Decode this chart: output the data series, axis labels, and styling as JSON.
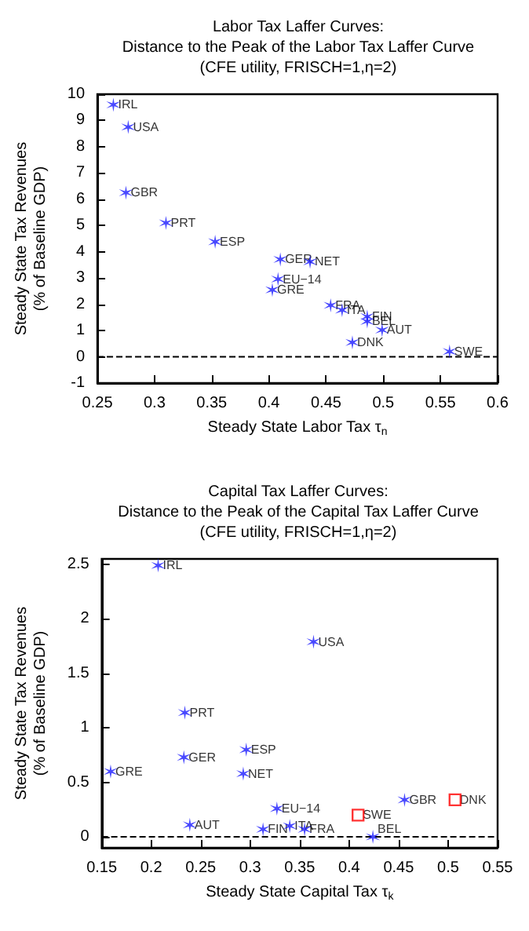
{
  "chart_data": [
    {
      "type": "scatter",
      "title": "Labor Tax Laffer Curves:\nDistance to the Peak of the Labor Tax Laffer Curve\n(CFE utility, FRISCH=1,η=2)",
      "xlabel": "Steady State Labor Tax τ$_{n}$",
      "ylabel": "Steady State Tax Revenues\n(% of Baseline GDP)",
      "xlim": [
        0.25,
        0.6
      ],
      "xticks": [
        0.25,
        0.3,
        0.35,
        0.4,
        0.45,
        0.5,
        0.55,
        0.6
      ],
      "ylim": [
        -1,
        10
      ],
      "yticks": [
        -1,
        0,
        1,
        2,
        3,
        4,
        5,
        6,
        7,
        8,
        9,
        10
      ],
      "grid": false,
      "series": [
        {
          "color": "#1a1aff",
          "marker": "cross",
          "x": [
            0.264,
            0.277,
            0.275,
            0.31,
            0.353,
            0.41,
            0.436,
            0.408,
            0.403,
            0.454,
            0.464,
            0.486,
            0.486,
            0.499,
            0.473,
            0.558
          ],
          "values": [
            9.6,
            8.75,
            6.25,
            5.1,
            4.38,
            3.71,
            3.62,
            2.96,
            2.55,
            1.96,
            1.78,
            1.53,
            1.35,
            1.02,
            0.55,
            0.2
          ]
        }
      ],
      "ref_lines": [
        {
          "axis": "y",
          "value": 0,
          "color": "#000000",
          "line_style": "dashed"
        }
      ],
      "annotations": [
        {
          "text": "IRL",
          "x": 0.264,
          "y": 9.6
        },
        {
          "text": "USA",
          "x": 0.277,
          "y": 8.75
        },
        {
          "text": "GBR",
          "x": 0.275,
          "y": 6.25
        },
        {
          "text": "PRT",
          "x": 0.31,
          "y": 5.1
        },
        {
          "text": "ESP",
          "x": 0.353,
          "y": 4.38
        },
        {
          "text": "GER",
          "x": 0.41,
          "y": 3.71
        },
        {
          "text": "NET",
          "x": 0.436,
          "y": 3.62
        },
        {
          "text": "EU−14",
          "x": 0.408,
          "y": 2.96
        },
        {
          "text": "GRE",
          "x": 0.403,
          "y": 2.55
        },
        {
          "text": "FRA",
          "x": 0.454,
          "y": 1.96
        },
        {
          "text": "ITA",
          "x": 0.464,
          "y": 1.78
        },
        {
          "text": "FIN",
          "x": 0.486,
          "y": 1.53
        },
        {
          "text": "BEL",
          "x": 0.486,
          "y": 1.35
        },
        {
          "text": "AUT",
          "x": 0.499,
          "y": 1.02
        },
        {
          "text": "DNK",
          "x": 0.473,
          "y": 0.55
        },
        {
          "text": "SWE",
          "x": 0.558,
          "y": 0.2
        }
      ]
    },
    {
      "type": "scatter",
      "title": "Capital Tax Laffer Curves:\nDistance to the Peak of the Capital Tax Laffer Curve\n(CFE utility, FRISCH=1,η=2)",
      "xlabel": "Steady State Capital Tax τ$_{k}$",
      "ylabel": "Steady State Tax Revenues\n(% of Baseline GDP)",
      "xlim": [
        0.15,
        0.55
      ],
      "xticks": [
        0.15,
        0.2,
        0.25,
        0.3,
        0.35,
        0.4,
        0.45,
        0.5,
        0.55
      ],
      "ylim": [
        -0.1,
        2.55
      ],
      "yticks": [
        0,
        0.5,
        1,
        1.5,
        2,
        2.5
      ],
      "grid": false,
      "series": [
        {
          "color": "#1a1aff",
          "marker": "cross",
          "x": [
            0.207,
            0.364,
            0.234,
            0.233,
            0.296,
            0.293,
            0.159,
            0.327,
            0.239,
            0.313,
            0.34,
            0.355,
            0.424,
            0.456
          ],
          "values": [
            2.49,
            1.79,
            1.14,
            0.73,
            0.8,
            0.58,
            0.6,
            0.26,
            0.11,
            0.07,
            0.1,
            0.07,
            0.0,
            0.34
          ]
        },
        {
          "color": "#ff0000",
          "marker": "square",
          "x": [
            0.409,
            0.507
          ],
          "values": [
            0.2,
            0.34
          ]
        }
      ],
      "ref_lines": [
        {
          "axis": "y",
          "value": 0,
          "color": "#000000",
          "line_style": "dashed"
        }
      ],
      "annotations": [
        {
          "text": "IRL",
          "x": 0.207,
          "y": 2.49
        },
        {
          "text": "USA",
          "x": 0.364,
          "y": 1.79
        },
        {
          "text": "PRT",
          "x": 0.234,
          "y": 1.14
        },
        {
          "text": "GER",
          "x": 0.233,
          "y": 0.73
        },
        {
          "text": "ESP",
          "x": 0.296,
          "y": 0.8
        },
        {
          "text": "NET",
          "x": 0.293,
          "y": 0.58
        },
        {
          "text": "GRE",
          "x": 0.159,
          "y": 0.6
        },
        {
          "text": "EU−14",
          "x": 0.327,
          "y": 0.26
        },
        {
          "text": "AUT",
          "x": 0.239,
          "y": 0.11
        },
        {
          "text": "FIN",
          "x": 0.313,
          "y": 0.07
        },
        {
          "text": "ITA",
          "x": 0.34,
          "y": 0.1
        },
        {
          "text": "FRA",
          "x": 0.355,
          "y": 0.07
        },
        {
          "text": "BEL",
          "x": 0.424,
          "y": 0.0
        },
        {
          "text": "GBR",
          "x": 0.456,
          "y": 0.34
        },
        {
          "text": "SWE",
          "x": 0.409,
          "y": 0.2
        },
        {
          "text": "DNK",
          "x": 0.507,
          "y": 0.34
        }
      ]
    }
  ]
}
